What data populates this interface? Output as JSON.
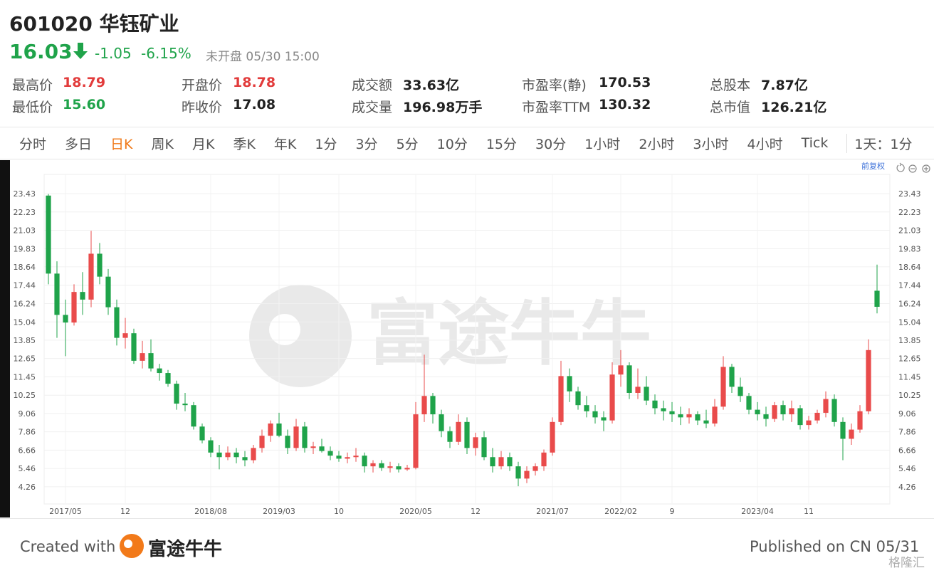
{
  "header": {
    "title": "601020 华钰矿业",
    "price": "16.03",
    "change": "-1.05",
    "change_pct": "-6.15%",
    "status": "未开盘 05/30 15:00"
  },
  "stats": [
    {
      "label": "最高价",
      "value": "18.79"
    },
    {
      "label": "开盘价",
      "value": "18.78"
    },
    {
      "label": "成交额",
      "value": "33.63亿"
    },
    {
      "label": "市盈率(静)",
      "value": "170.53"
    },
    {
      "label": "总股本",
      "value": "7.87亿"
    },
    {
      "label": "最低价",
      "value": "15.60"
    },
    {
      "label": "昨收价",
      "value": "17.08"
    },
    {
      "label": "成交量",
      "value": "196.98万手"
    },
    {
      "label": "市盈率TTM",
      "value": "130.32"
    },
    {
      "label": "总市值",
      "value": "126.21亿"
    }
  ],
  "tabs": [
    "分时",
    "多日",
    "日K",
    "周K",
    "月K",
    "季K",
    "年K",
    "1分",
    "3分",
    "5分",
    "10分",
    "15分",
    "30分",
    "1小时",
    "2小时",
    "3小时",
    "4小时",
    "Tick",
    "1天：1分"
  ],
  "chart_data": {
    "type": "candlestick",
    "adjust_label": "前复权",
    "watermark": "富途牛牛",
    "up_color": "#e94b4b",
    "down_color": "#1fa34a",
    "grid": true,
    "ylim": [
      3.14,
      24.22
    ],
    "yticks": [
      23.43,
      22.23,
      21.03,
      19.83,
      18.64,
      17.44,
      16.24,
      15.04,
      13.85,
      12.65,
      11.45,
      10.25,
      9.06,
      7.86,
      6.66,
      5.46,
      4.26
    ],
    "categories": [
      null,
      null,
      "2017/05",
      null,
      null,
      null,
      null,
      null,
      null,
      "12",
      null,
      null,
      null,
      null,
      null,
      null,
      null,
      null,
      null,
      "2018/08",
      null,
      null,
      null,
      null,
      null,
      null,
      null,
      "2019/03",
      null,
      null,
      null,
      null,
      null,
      null,
      "10",
      null,
      null,
      null,
      null,
      null,
      null,
      null,
      null,
      "2020/05",
      null,
      null,
      null,
      null,
      null,
      null,
      "12",
      null,
      null,
      null,
      null,
      null,
      null,
      null,
      null,
      "2021/07",
      null,
      null,
      null,
      null,
      null,
      null,
      null,
      "2022/02",
      null,
      null,
      null,
      null,
      null,
      "9",
      null,
      null,
      null,
      null,
      null,
      null,
      null,
      null,
      null,
      "2023/04",
      null,
      null,
      null,
      null,
      null,
      "11",
      null,
      null,
      null,
      null,
      null,
      null,
      null,
      null
    ],
    "open": [
      23.3,
      18.2,
      15.5,
      15,
      17,
      16.5,
      19.5,
      18,
      16,
      14,
      14.3,
      12.5,
      13,
      12,
      11.7,
      11,
      9.7,
      9.6,
      8.2,
      7.3,
      6.5,
      6.2,
      6.5,
      6.2,
      6,
      6.8,
      7.6,
      8.4,
      7.6,
      6.8,
      8.2,
      6.8,
      6.9,
      6.6,
      6.3,
      6.1,
      6.2,
      6.3,
      5.6,
      5.8,
      5.5,
      5.6,
      5.4,
      5.5,
      9,
      10.2,
      9,
      7.9,
      7.2,
      8.5,
      6.8,
      7.5,
      6.2,
      5.6,
      6.2,
      5.6,
      4.8,
      5.3,
      5.6,
      6.5,
      8.5,
      11.5,
      10.5,
      9.6,
      9.2,
      8.8,
      8.6,
      11.6,
      12.2,
      10.4,
      10.8,
      9.9,
      9.4,
      9.2,
      9,
      8.8,
      9,
      8.6,
      8.4,
      9.5,
      12.1,
      10.8,
      10.2,
      9.3,
      9,
      8.7,
      9.6,
      9,
      9.4,
      8.3,
      8.6,
      9.1,
      10,
      8.5,
      7.4,
      8,
      9.2,
      17.08
    ],
    "high": [
      23.4,
      19,
      16.5,
      17.5,
      18.3,
      21,
      20.2,
      18.5,
      16.5,
      15.3,
      14.6,
      13.8,
      13.9,
      12.3,
      11.9,
      11.2,
      10.4,
      9.8,
      8.4,
      7.5,
      7,
      6.9,
      6.8,
      6.6,
      7,
      8,
      8.6,
      9.1,
      8,
      8.7,
      8.5,
      7.2,
      7.4,
      6.9,
      6.6,
      6.5,
      6.8,
      6.5,
      6,
      6,
      5.9,
      5.8,
      5.7,
      9.8,
      12.9,
      10.4,
      9.3,
      8.2,
      9,
      8.8,
      7.8,
      7.9,
      6.8,
      6.6,
      6.5,
      5.9,
      5.6,
      5.8,
      6.7,
      8.8,
      12.5,
      12,
      10.8,
      10.2,
      9.6,
      9.2,
      12.4,
      13.2,
      12.4,
      12,
      11.5,
      10.3,
      9.9,
      9.8,
      9.5,
      9.4,
      9.2,
      9.3,
      10,
      12.8,
      12.3,
      11.4,
      10.4,
      9.8,
      9.5,
      9.8,
      9.9,
      9.9,
      9.6,
      8.9,
      9.3,
      10.5,
      10.3,
      8.8,
      8.4,
      9.6,
      13.9,
      18.79
    ],
    "low": [
      17.5,
      14,
      12.8,
      14.8,
      15.5,
      16,
      17.5,
      15.5,
      13.5,
      13.3,
      12.3,
      12,
      11.8,
      11.2,
      10.8,
      9.3,
      9.2,
      8,
      7.1,
      6.2,
      5.4,
      6,
      5.8,
      5.6,
      5.8,
      6.5,
      7.2,
      7.5,
      6.4,
      6.6,
      6.5,
      6.4,
      6.5,
      6,
      5.9,
      5.8,
      5.9,
      5.2,
      5.2,
      5.3,
      5.2,
      5.2,
      5.3,
      5.4,
      8.5,
      8.4,
      7.5,
      6.8,
      7,
      6.4,
      6.3,
      6,
      5.2,
      5.4,
      5.3,
      4.3,
      4.5,
      5,
      5.3,
      6.3,
      8.3,
      9.8,
      9.3,
      8.8,
      8.4,
      7.9,
      8.4,
      10.8,
      10,
      10,
      9.6,
      9,
      8.6,
      8.5,
      8.3,
      8.4,
      8.3,
      8.1,
      8.2,
      9.3,
      10.4,
      9.8,
      9,
      8.6,
      8.2,
      8.5,
      8.6,
      8.5,
      8,
      8,
      8.4,
      8.8,
      8.2,
      6,
      7,
      7.8,
      9,
      15.6
    ],
    "close": [
      18.2,
      15.5,
      15,
      17,
      16.5,
      19.5,
      18,
      16,
      14,
      14.3,
      12.5,
      13,
      12,
      11.7,
      11,
      9.7,
      9.6,
      8.2,
      7.3,
      6.5,
      6.2,
      6.5,
      6.2,
      6,
      6.8,
      7.6,
      8.4,
      7.6,
      6.8,
      8.2,
      6.8,
      6.9,
      6.6,
      6.3,
      6.1,
      6.2,
      6.3,
      5.6,
      5.8,
      5.5,
      5.6,
      5.4,
      5.5,
      9,
      10.2,
      9,
      7.9,
      7.2,
      8.5,
      6.8,
      7.5,
      6.2,
      5.6,
      6.2,
      5.6,
      4.8,
      5.3,
      5.6,
      6.5,
      8.5,
      11.5,
      10.5,
      9.6,
      9.2,
      8.8,
      8.6,
      11.6,
      12.2,
      10.4,
      10.8,
      9.9,
      9.4,
      9.2,
      9,
      8.8,
      9,
      8.6,
      8.4,
      9.5,
      12.1,
      10.8,
      10.2,
      9.3,
      9,
      8.7,
      9.6,
      9,
      9.4,
      8.3,
      8.6,
      9.1,
      10,
      8.5,
      7.4,
      8,
      9.2,
      13.2,
      16.03
    ]
  },
  "footer": {
    "created": "Created with",
    "brand": "富途牛牛",
    "published": "Published on CN 05/31",
    "source": "格隆汇"
  }
}
